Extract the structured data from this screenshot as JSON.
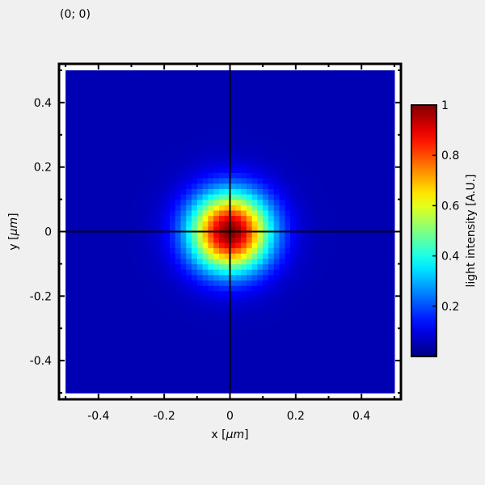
{
  "readout": {
    "cursor_position": "(0; 0)"
  },
  "chart_data": {
    "type": "heatmap",
    "title": "",
    "xlabel_prefix": "x [",
    "xlabel_unit": "μm",
    "xlabel_suffix": "]",
    "ylabel_prefix": "y [",
    "ylabel_unit": "μm",
    "ylabel_suffix": "]",
    "colorbar_label": "light intensity [A.U.]",
    "xlim": [
      -0.52,
      0.52
    ],
    "ylim": [
      -0.52,
      0.52
    ],
    "data_extent": {
      "x": [
        -0.5,
        0.5
      ],
      "y": [
        -0.5,
        0.5
      ]
    },
    "x_ticks": [
      {
        "value": -0.4,
        "label": "-0.4"
      },
      {
        "value": -0.2,
        "label": "-0.2"
      },
      {
        "value": 0,
        "label": "0"
      },
      {
        "value": 0.2,
        "label": "0.2"
      },
      {
        "value": 0.4,
        "label": "0.4"
      }
    ],
    "y_ticks": [
      {
        "value": 0.4,
        "label": "0.4"
      },
      {
        "value": 0.2,
        "label": "0.2"
      },
      {
        "value": 0,
        "label": "0"
      },
      {
        "value": -0.2,
        "label": "-0.2"
      },
      {
        "value": -0.4,
        "label": "-0.4"
      }
    ],
    "colorbar_range": [
      0,
      1
    ],
    "colorbar_ticks": [
      {
        "value": 1,
        "label": "1"
      },
      {
        "value": 0.8,
        "label": "0.8"
      },
      {
        "value": 0.6,
        "label": "0.6"
      },
      {
        "value": 0.4,
        "label": "0.4"
      },
      {
        "value": 0.2,
        "label": "0.2"
      }
    ],
    "colormap": "jet",
    "field": {
      "shape": "gaussian",
      "center": [
        0,
        0
      ],
      "radius_at_half_max": 0.1,
      "peak": 1,
      "background": 0.05
    },
    "crosshair": {
      "x": 0,
      "y": 0
    }
  }
}
